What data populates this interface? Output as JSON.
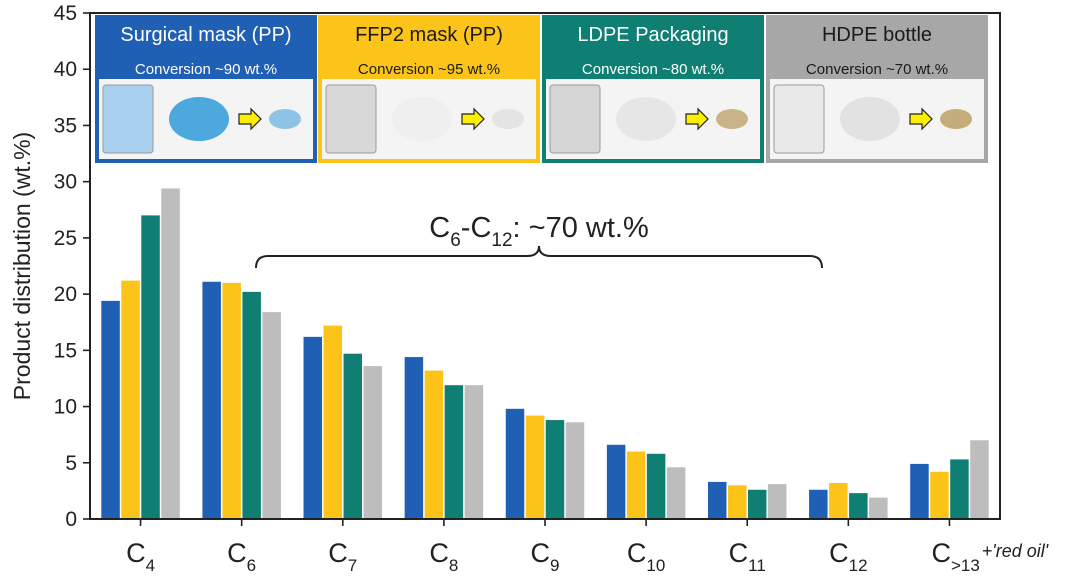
{
  "chart_data": {
    "type": "bar",
    "ylabel": "Product distribution (wt.%)",
    "ylim": [
      0,
      45
    ],
    "yticks": [
      0,
      5,
      10,
      15,
      20,
      25,
      30,
      35,
      40,
      45
    ],
    "categories": [
      {
        "base": "C",
        "sub": "4",
        "suffix": ""
      },
      {
        "base": "C",
        "sub": "6",
        "suffix": ""
      },
      {
        "base": "C",
        "sub": "7",
        "suffix": ""
      },
      {
        "base": "C",
        "sub": "8",
        "suffix": ""
      },
      {
        "base": "C",
        "sub": "9",
        "suffix": ""
      },
      {
        "base": "C",
        "sub": "10",
        "suffix": ""
      },
      {
        "base": "C",
        "sub": "11",
        "suffix": ""
      },
      {
        "base": "C",
        "sub": "12",
        "suffix": ""
      },
      {
        "base": "C",
        "sub": ">13",
        "suffix": "+'red oil'"
      }
    ],
    "series": [
      {
        "name": "Surgical mask (PP)",
        "color": "#1f5fb4",
        "values": [
          19.4,
          21.1,
          16.2,
          14.4,
          9.8,
          6.6,
          3.3,
          2.6,
          4.9
        ]
      },
      {
        "name": "FFP2 mask (PP)",
        "color": "#fcc419",
        "values": [
          21.2,
          21.0,
          17.2,
          13.2,
          9.2,
          6.0,
          3.0,
          3.2,
          4.2
        ]
      },
      {
        "name": "LDPE Packaging",
        "color": "#0f7f74",
        "values": [
          27.0,
          20.2,
          14.7,
          11.9,
          8.8,
          5.8,
          2.6,
          2.3,
          5.3
        ]
      },
      {
        "name": "HDPE bottle",
        "color": "#bdbdbd",
        "values": [
          29.4,
          18.4,
          13.6,
          11.9,
          8.6,
          4.6,
          3.1,
          1.9,
          7.0
        ]
      }
    ],
    "annotation": {
      "prefix": "C",
      "sub1": "6",
      "mid": "-C",
      "sub2": "12",
      "rest": ": ~70 wt.%"
    },
    "panels": [
      {
        "title": "Surgical mask (PP)",
        "conversion": "Conversion ~90 wt.%",
        "color": "#1f5fb4",
        "title_color": "#ffffff",
        "conv_color": "#ffffff",
        "swatches": [
          "#a8d0ee",
          "#4da8dd",
          "#8fc3e6"
        ]
      },
      {
        "title": "FFP2 mask (PP)",
        "conversion": "Conversion ~95 wt.%",
        "color": "#fcc419",
        "title_color": "#1a1a1a",
        "conv_color": "#1a1a1a",
        "swatches": [
          "#d8d8d8",
          "#efefef",
          "#e4e4e4"
        ]
      },
      {
        "title": "LDPE Packaging",
        "conversion": "Conversion ~80 wt.%",
        "color": "#0f7f74",
        "title_color": "#ffffff",
        "conv_color": "#ffffff",
        "swatches": [
          "#d6d6d6",
          "#e6e6e6",
          "#c9b48a"
        ]
      },
      {
        "title": "HDPE bottle",
        "conversion": "Conversion ~70 wt.%",
        "color": "#a7a7a7",
        "title_color": "#1a1a1a",
        "conv_color": "#1a1a1a",
        "swatches": [
          "#e9e9e9",
          "#e2e2e2",
          "#c4ad7a"
        ]
      }
    ]
  }
}
